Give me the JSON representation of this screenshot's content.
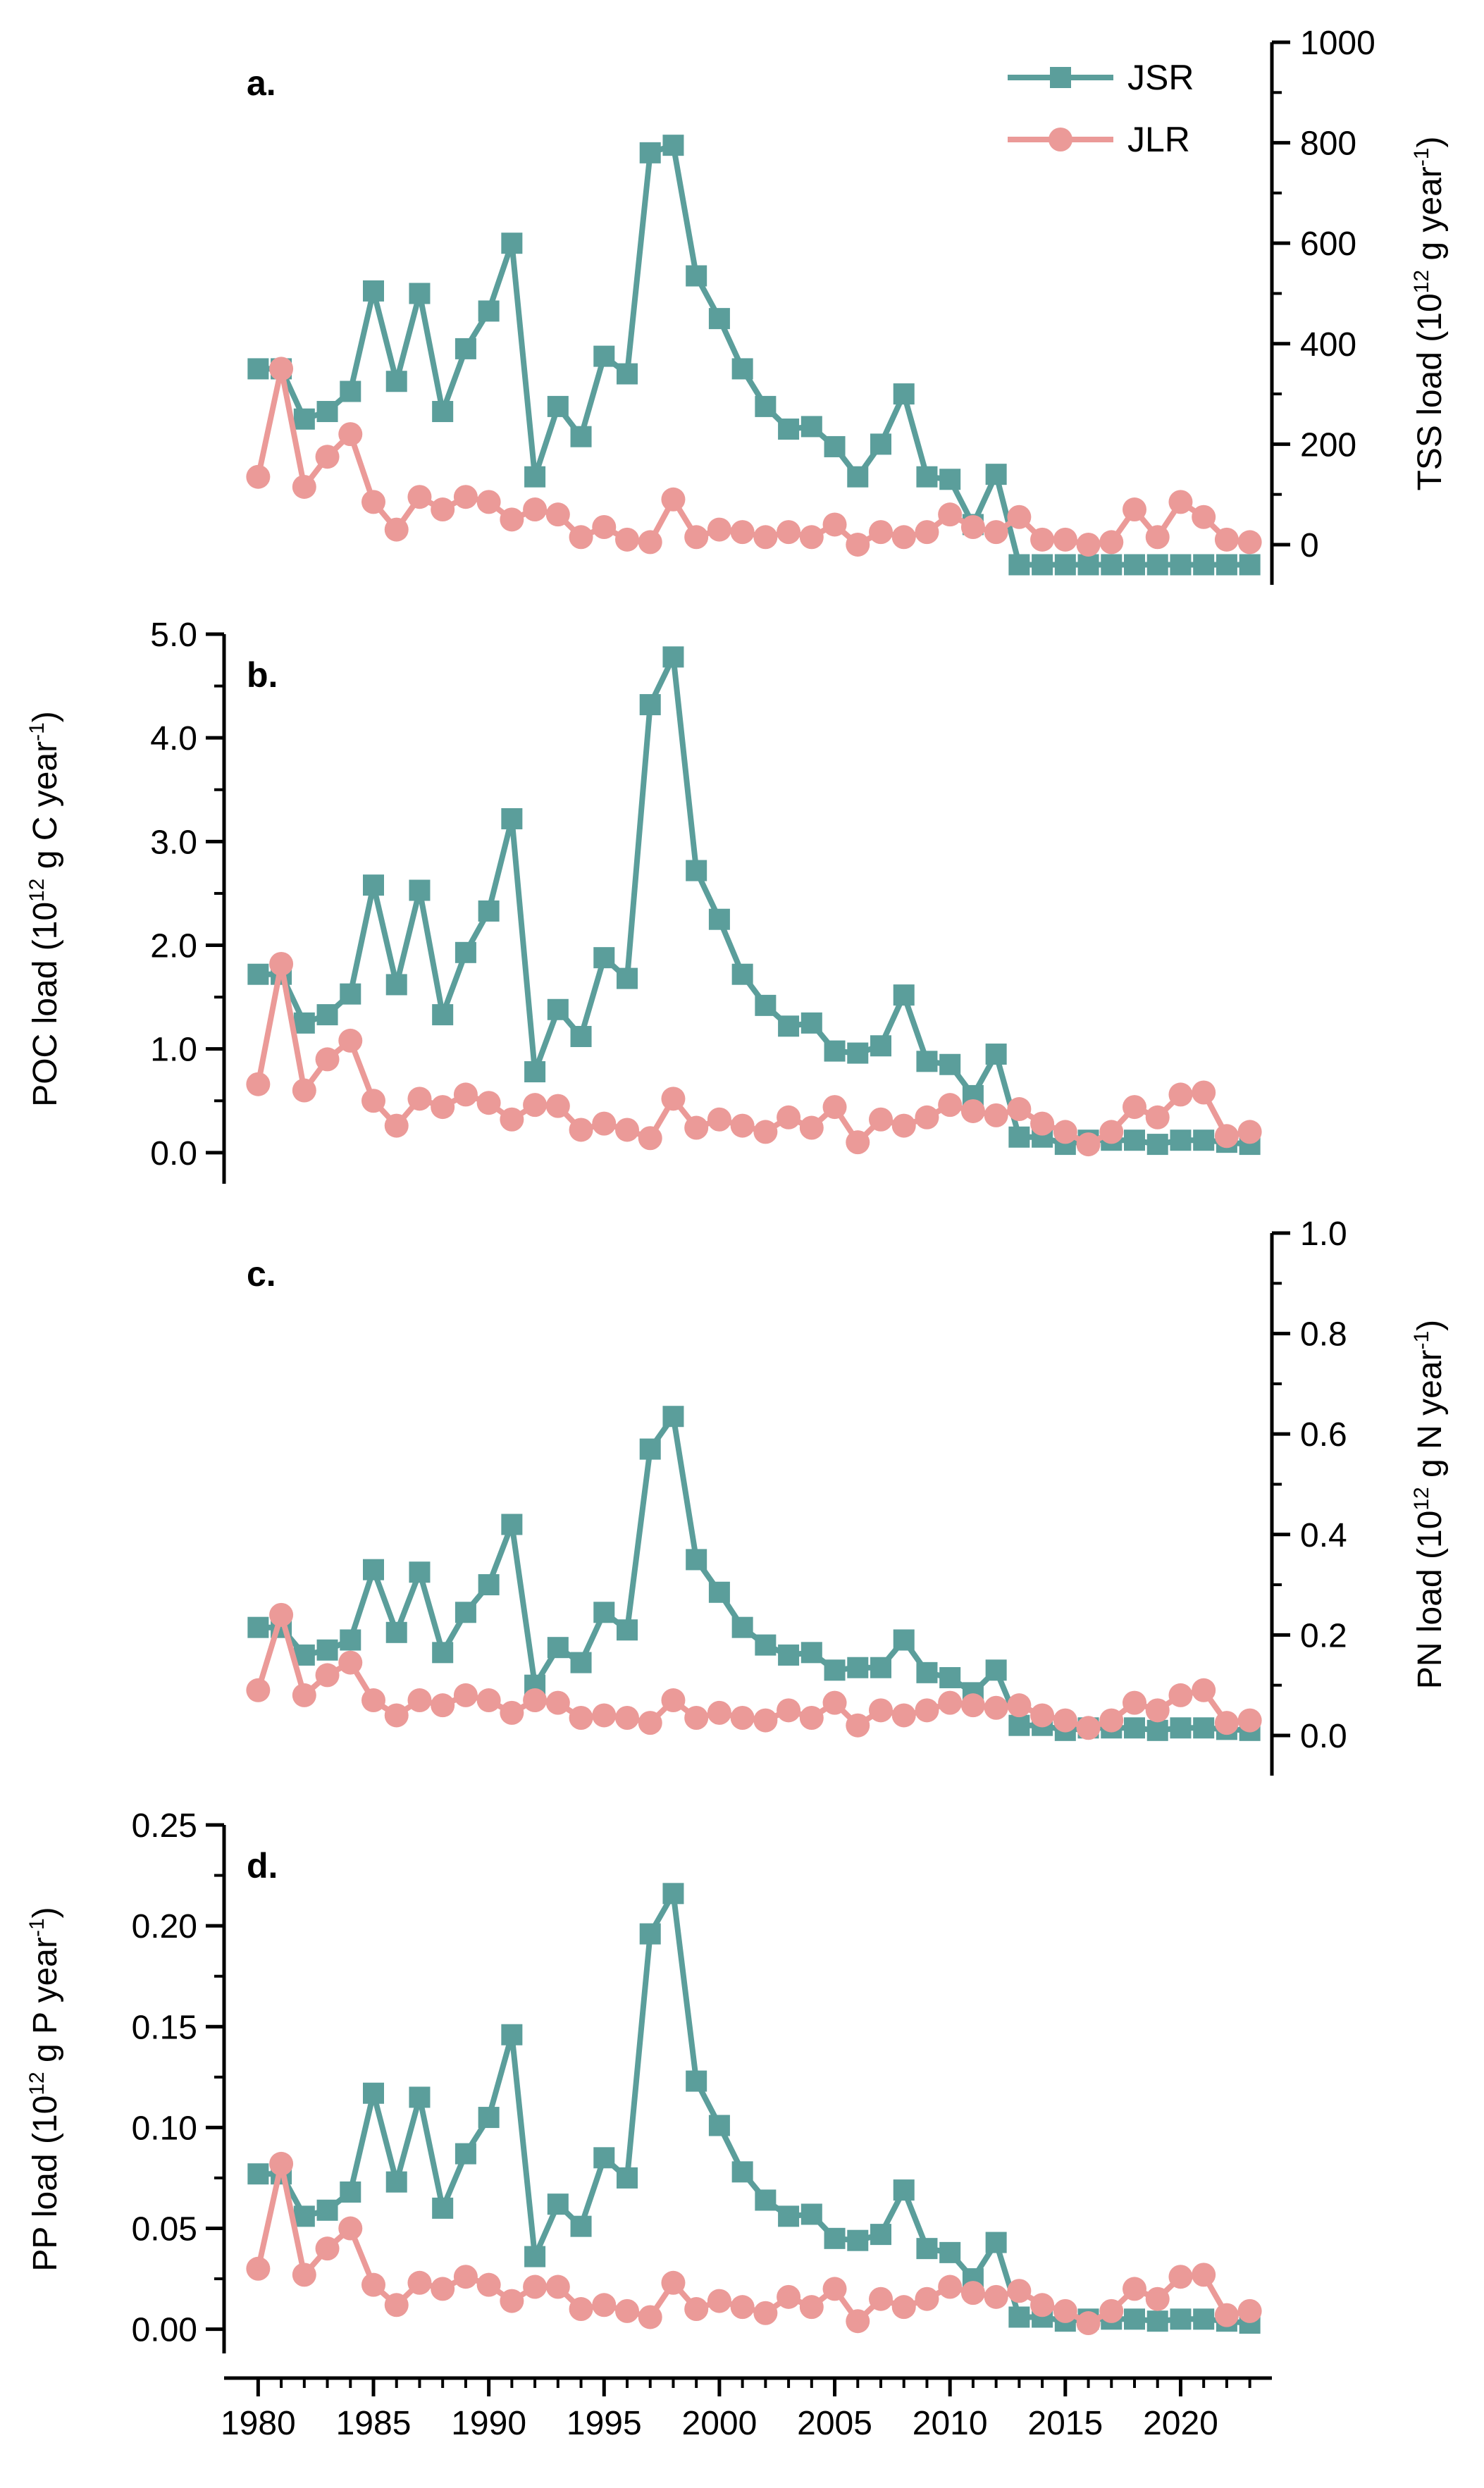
{
  "figure": {
    "x_ticks": [
      1980,
      1985,
      1990,
      1995,
      2000,
      2005,
      2010,
      2015,
      2020
    ],
    "legend": [
      {
        "name": "JSR",
        "color": "#5b9e9b",
        "marker": "square"
      },
      {
        "name": "JLR",
        "color": "#eb9a98",
        "marker": "circle"
      }
    ]
  },
  "chart_data": [
    {
      "type": "line",
      "panel_label": "a.",
      "title": "",
      "xlabel": "",
      "ylabel": "TSS load (10",
      "ylabel_sup": "12",
      "ylabel_tail": " g  year",
      "ylabel_sup2": "-1",
      "ylabel_end": ")",
      "axis_side": "right",
      "ylim": [
        -80,
        1000
      ],
      "yticks": [
        0,
        200,
        400,
        600,
        800,
        1000
      ],
      "ytick_labels": [
        "0",
        "200",
        "400",
        "600",
        "800",
        "1000"
      ],
      "x": [
        1980,
        1981,
        1982,
        1983,
        1984,
        1985,
        1986,
        1987,
        1988,
        1989,
        1990,
        1991,
        1992,
        1993,
        1994,
        1995,
        1996,
        1997,
        1998,
        1999,
        2000,
        2001,
        2002,
        2003,
        2004,
        2005,
        2006,
        2007,
        2008,
        2009,
        2010,
        2011,
        2012,
        2013,
        2014,
        2015,
        2016,
        2017,
        2018,
        2019,
        2020,
        2021,
        2022,
        2023
      ],
      "series": [
        {
          "name": "JSR",
          "values": [
            350,
            350,
            250,
            265,
            305,
            505,
            325,
            500,
            265,
            390,
            465,
            600,
            135,
            275,
            215,
            375,
            340,
            780,
            795,
            535,
            450,
            350,
            275,
            230,
            235,
            195,
            135,
            200,
            300,
            135,
            130,
            40,
            140,
            -40,
            -40,
            -40,
            -40,
            -40,
            -40,
            -40,
            -40,
            -40,
            -40,
            -40
          ]
        },
        {
          "name": "JLR",
          "values": [
            135,
            350,
            115,
            175,
            220,
            85,
            30,
            95,
            70,
            95,
            85,
            50,
            70,
            60,
            15,
            35,
            10,
            5,
            90,
            15,
            30,
            25,
            15,
            25,
            15,
            40,
            0,
            25,
            15,
            25,
            60,
            35,
            25,
            55,
            10,
            10,
            0,
            5,
            70,
            15,
            85,
            55,
            10,
            5
          ]
        }
      ]
    },
    {
      "type": "line",
      "panel_label": "b.",
      "title": "",
      "xlabel": "",
      "ylabel": "POC load (10",
      "ylabel_sup": "12",
      "ylabel_tail": " g C year",
      "ylabel_sup2": "-1",
      "ylabel_end": ")",
      "axis_side": "left",
      "ylim": [
        -0.3,
        5.0
      ],
      "yticks": [
        0.0,
        1.0,
        2.0,
        3.0,
        4.0,
        5.0
      ],
      "ytick_labels": [
        "0.0",
        "1.0",
        "2.0",
        "3.0",
        "4.0",
        "5.0"
      ],
      "x": [
        1980,
        1981,
        1982,
        1983,
        1984,
        1985,
        1986,
        1987,
        1988,
        1989,
        1990,
        1991,
        1992,
        1993,
        1994,
        1995,
        1996,
        1997,
        1998,
        1999,
        2000,
        2001,
        2002,
        2003,
        2004,
        2005,
        2006,
        2007,
        2008,
        2009,
        2010,
        2011,
        2012,
        2013,
        2014,
        2015,
        2016,
        2017,
        2018,
        2019,
        2020,
        2021,
        2022,
        2023
      ],
      "series": [
        {
          "name": "JSR",
          "values": [
            1.72,
            1.72,
            1.25,
            1.33,
            1.53,
            2.58,
            1.62,
            2.53,
            1.33,
            1.93,
            2.33,
            3.22,
            0.78,
            1.38,
            1.12,
            1.88,
            1.68,
            4.32,
            4.78,
            2.72,
            2.25,
            1.72,
            1.42,
            1.22,
            1.25,
            0.98,
            0.96,
            1.03,
            1.52,
            0.88,
            0.85,
            0.55,
            0.95,
            0.15,
            0.15,
            0.08,
            0.12,
            0.12,
            0.12,
            0.08,
            0.12,
            0.12,
            0.1,
            0.08
          ]
        },
        {
          "name": "JLR",
          "values": [
            0.66,
            1.82,
            0.6,
            0.9,
            1.08,
            0.5,
            0.26,
            0.52,
            0.44,
            0.56,
            0.48,
            0.32,
            0.46,
            0.45,
            0.22,
            0.28,
            0.22,
            0.14,
            0.52,
            0.24,
            0.32,
            0.26,
            0.2,
            0.34,
            0.24,
            0.44,
            0.1,
            0.32,
            0.26,
            0.34,
            0.46,
            0.4,
            0.36,
            0.42,
            0.28,
            0.2,
            0.08,
            0.2,
            0.44,
            0.34,
            0.56,
            0.58,
            0.16,
            0.2
          ]
        }
      ]
    },
    {
      "type": "line",
      "panel_label": "c.",
      "title": "",
      "xlabel": "",
      "ylabel": "PN load (10",
      "ylabel_sup": "12",
      "ylabel_tail": " g N year",
      "ylabel_sup2": "-1",
      "ylabel_end": ")",
      "axis_side": "right",
      "ylim": [
        -0.08,
        1.0
      ],
      "yticks": [
        0.0,
        0.2,
        0.4,
        0.6,
        0.8,
        1.0
      ],
      "ytick_labels": [
        "0.0",
        "0.2",
        "0.4",
        "0.6",
        "0.8",
        "1.0"
      ],
      "x": [
        1980,
        1981,
        1982,
        1983,
        1984,
        1985,
        1986,
        1987,
        1988,
        1989,
        1990,
        1991,
        1992,
        1993,
        1994,
        1995,
        1996,
        1997,
        1998,
        1999,
        2000,
        2001,
        2002,
        2003,
        2004,
        2005,
        2006,
        2007,
        2008,
        2009,
        2010,
        2011,
        2012,
        2013,
        2014,
        2015,
        2016,
        2017,
        2018,
        2019,
        2020,
        2021,
        2022,
        2023
      ],
      "series": [
        {
          "name": "JSR",
          "values": [
            0.215,
            0.215,
            0.16,
            0.17,
            0.19,
            0.33,
            0.205,
            0.325,
            0.165,
            0.245,
            0.3,
            0.42,
            0.1,
            0.175,
            0.145,
            0.245,
            0.21,
            0.57,
            0.635,
            0.35,
            0.285,
            0.215,
            0.18,
            0.16,
            0.165,
            0.13,
            0.135,
            0.135,
            0.19,
            0.125,
            0.115,
            0.085,
            0.13,
            0.02,
            0.02,
            0.01,
            0.015,
            0.015,
            0.015,
            0.01,
            0.015,
            0.015,
            0.012,
            0.01
          ]
        },
        {
          "name": "JLR",
          "values": [
            0.09,
            0.24,
            0.08,
            0.12,
            0.145,
            0.07,
            0.04,
            0.07,
            0.06,
            0.08,
            0.07,
            0.045,
            0.07,
            0.065,
            0.035,
            0.04,
            0.035,
            0.025,
            0.07,
            0.035,
            0.045,
            0.035,
            0.03,
            0.05,
            0.035,
            0.065,
            0.02,
            0.05,
            0.04,
            0.05,
            0.065,
            0.06,
            0.055,
            0.06,
            0.04,
            0.03,
            0.015,
            0.03,
            0.065,
            0.05,
            0.08,
            0.09,
            0.025,
            0.03
          ]
        }
      ]
    },
    {
      "type": "line",
      "panel_label": "d.",
      "title": "",
      "xlabel": "",
      "ylabel": "PP load (10",
      "ylabel_sup": "12",
      "ylabel_tail": " g P year",
      "ylabel_sup2": "-1",
      "ylabel_end": ")",
      "axis_side": "left",
      "ylim": [
        -0.012,
        0.25
      ],
      "yticks": [
        0.0,
        0.05,
        0.1,
        0.15,
        0.2,
        0.25
      ],
      "ytick_labels": [
        "0.00",
        "0.05",
        "0.10",
        "0.15",
        "0.20",
        "0.25"
      ],
      "x": [
        1980,
        1981,
        1982,
        1983,
        1984,
        1985,
        1986,
        1987,
        1988,
        1989,
        1990,
        1991,
        1992,
        1993,
        1994,
        1995,
        1996,
        1997,
        1998,
        1999,
        2000,
        2001,
        2002,
        2003,
        2004,
        2005,
        2006,
        2007,
        2008,
        2009,
        2010,
        2011,
        2012,
        2013,
        2014,
        2015,
        2016,
        2017,
        2018,
        2019,
        2020,
        2021,
        2022,
        2023
      ],
      "series": [
        {
          "name": "JSR",
          "values": [
            0.077,
            0.077,
            0.056,
            0.059,
            0.068,
            0.117,
            0.073,
            0.115,
            0.06,
            0.087,
            0.105,
            0.146,
            0.036,
            0.062,
            0.051,
            0.085,
            0.075,
            0.196,
            0.216,
            0.123,
            0.101,
            0.078,
            0.064,
            0.056,
            0.057,
            0.045,
            0.044,
            0.047,
            0.069,
            0.04,
            0.038,
            0.025,
            0.043,
            0.006,
            0.006,
            0.004,
            0.005,
            0.005,
            0.005,
            0.004,
            0.005,
            0.005,
            0.004,
            0.003
          ]
        },
        {
          "name": "JLR",
          "values": [
            0.03,
            0.082,
            0.027,
            0.04,
            0.05,
            0.022,
            0.012,
            0.023,
            0.02,
            0.026,
            0.022,
            0.014,
            0.021,
            0.021,
            0.01,
            0.012,
            0.009,
            0.006,
            0.023,
            0.01,
            0.014,
            0.011,
            0.008,
            0.016,
            0.011,
            0.02,
            0.004,
            0.015,
            0.011,
            0.015,
            0.021,
            0.018,
            0.016,
            0.019,
            0.012,
            0.009,
            0.003,
            0.009,
            0.02,
            0.015,
            0.026,
            0.027,
            0.007,
            0.009
          ]
        }
      ]
    }
  ]
}
